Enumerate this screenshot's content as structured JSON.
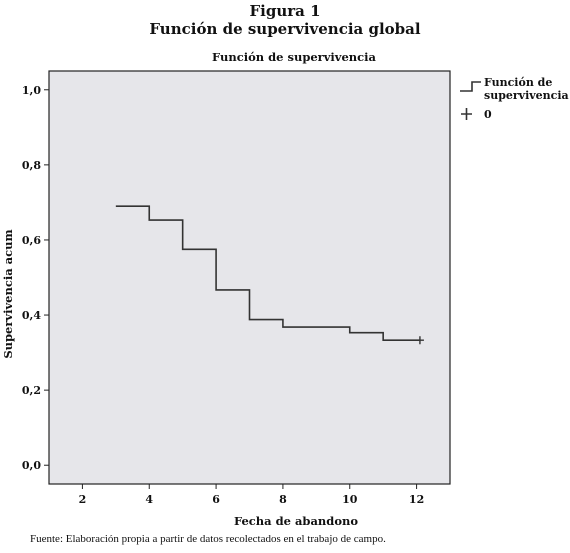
{
  "figure": {
    "label": "Figura 1",
    "title": "Función de supervivencia global",
    "source": "Fuente: Elaboración propia a partir de datos recolectados en el trabajo de campo."
  },
  "chart_data": {
    "type": "line",
    "title": "Función de supervivencia",
    "xlabel": "Fecha de abandono",
    "ylabel": "Supervivencia acum",
    "xlim": [
      1.0,
      13.0
    ],
    "ylim": [
      -0.05,
      1.05
    ],
    "x_ticks": [
      2,
      4,
      6,
      8,
      10,
      12
    ],
    "y_ticks": [
      0.0,
      0.2,
      0.4,
      0.6,
      0.8,
      1.0
    ],
    "x_tick_labels": [
      "2",
      "4",
      "6",
      "8",
      "10",
      "12"
    ],
    "y_tick_labels": [
      "0,0",
      "0,2",
      "0,4",
      "0,6",
      "0,8",
      "1,0"
    ],
    "plot_background": "#e6e6ea",
    "line_color": "#333333",
    "legend": {
      "position": "right",
      "entries": [
        {
          "label_line1": "Función de",
          "label_line2": "supervivencia",
          "marker": "step"
        },
        {
          "label_line1": "0",
          "marker": "plus"
        }
      ]
    },
    "series": [
      {
        "step_x": [
          3,
          4,
          5,
          6,
          7,
          8,
          10,
          11,
          12.1
        ],
        "step_y": [
          0.69,
          0.653,
          0.575,
          0.467,
          0.388,
          0.368,
          0.353,
          0.333,
          0.333
        ],
        "censored": [
          {
            "x": 12.1,
            "y": 0.333
          }
        ]
      }
    ]
  }
}
